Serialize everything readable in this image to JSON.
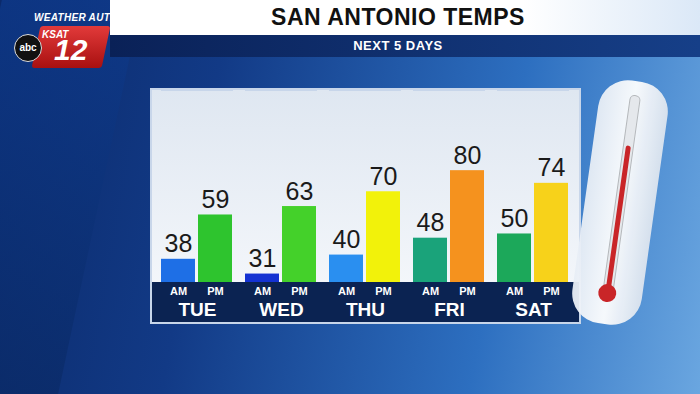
{
  "header": {
    "brand": "WEATHER AUTHORITY",
    "network": "abc",
    "station": "KSAT",
    "channel": "12"
  },
  "chart_data": {
    "type": "bar",
    "title": "SAN ANTONIO TEMPS",
    "subtitle": "NEXT 5 DAYS",
    "categories": [
      "TUE",
      "WED",
      "THU",
      "FRI",
      "SAT"
    ],
    "series": [
      {
        "name": "AM",
        "values": [
          38,
          31,
          40,
          48,
          50
        ],
        "colors": [
          "#1e6fe6",
          "#1432d2",
          "#2a8ff0",
          "#1aa37a",
          "#1ca85a"
        ]
      },
      {
        "name": "PM",
        "values": [
          59,
          63,
          70,
          80,
          74
        ],
        "colors": [
          "#2ec42e",
          "#44d12a",
          "#f2f20a",
          "#f5921e",
          "#f7d21a"
        ]
      }
    ],
    "ylim": [
      27,
      118
    ],
    "yticks": [],
    "tick_labels": "x",
    "data_labels": true,
    "grid": false
  }
}
